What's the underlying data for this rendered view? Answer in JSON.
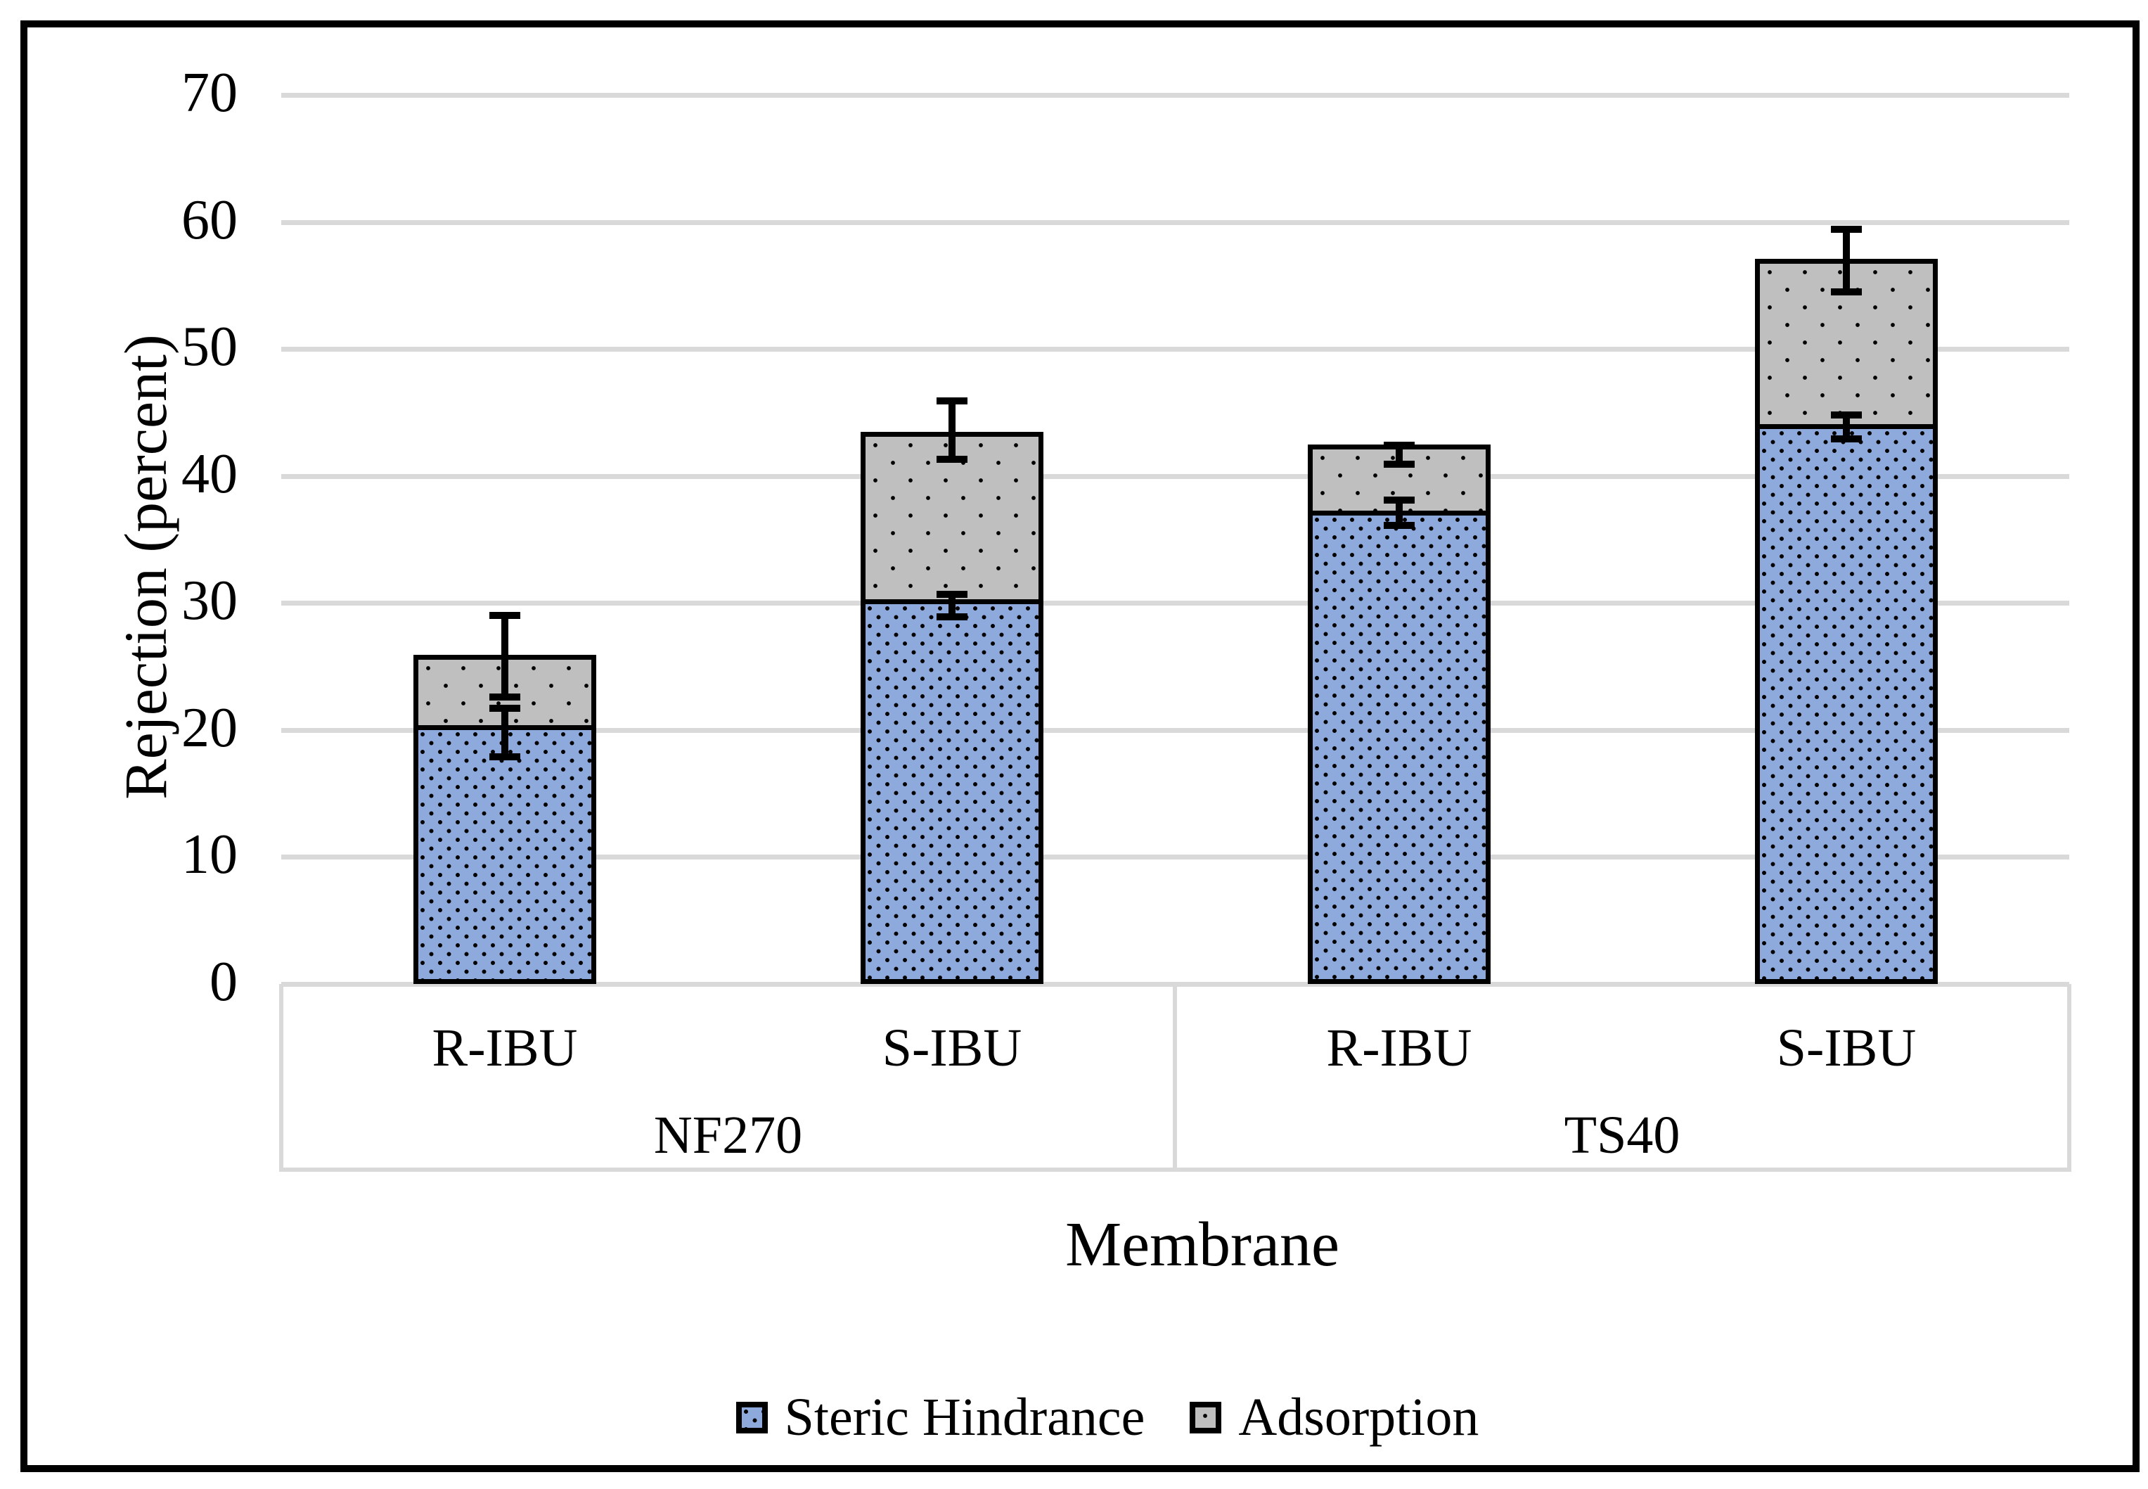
{
  "figure": {
    "background": "#ffffff",
    "frame_border_color": "#000000",
    "gridline_color": "#d9d9d9",
    "bar_border_color": "#000000",
    "error_bar_color": "#000000"
  },
  "chart_data": {
    "type": "bar",
    "stacked": true,
    "title": "",
    "xlabel": "Membrane",
    "ylabel": "Rejection (percent)",
    "ylim": [
      0,
      70
    ],
    "ytick_step": 10,
    "yticks": [
      0,
      10,
      20,
      30,
      40,
      50,
      60,
      70
    ],
    "grid": true,
    "legend_position": "bottom",
    "groups": [
      {
        "label": "NF270",
        "categories": [
          "R-IBU",
          "S-IBU"
        ]
      },
      {
        "label": "TS40",
        "categories": [
          "R-IBU",
          "S-IBU"
        ]
      }
    ],
    "categories": [
      "R-IBU",
      "S-IBU",
      "R-IBU",
      "S-IBU"
    ],
    "series": [
      {
        "name": "Steric Hindrance",
        "color": "#8ea9db",
        "pattern": "dense-black-square-dots",
        "values": [
          20.0,
          29.9,
          36.9,
          43.7
        ],
        "error_bars": [
          {
            "lo": 17.9,
            "hi": 21.7
          },
          {
            "lo": 28.9,
            "hi": 30.7
          },
          {
            "lo": 36.1,
            "hi": 38.1
          },
          {
            "lo": 42.9,
            "hi": 44.8
          }
        ]
      },
      {
        "name": "Adsorption",
        "color": "#bfbfbf",
        "pattern": "sparse-black-square-dots",
        "values": [
          5.9,
          13.6,
          5.6,
          13.4
        ],
        "error_bars": [
          {
            "lo": 22.6,
            "hi": 29.0
          },
          {
            "lo": 41.3,
            "hi": 45.9
          },
          {
            "lo": 40.9,
            "hi": 42.4
          },
          {
            "lo": 54.5,
            "hi": 59.4
          }
        ]
      }
    ],
    "stack_totals": [
      25.9,
      43.5,
      42.5,
      57.1
    ]
  }
}
